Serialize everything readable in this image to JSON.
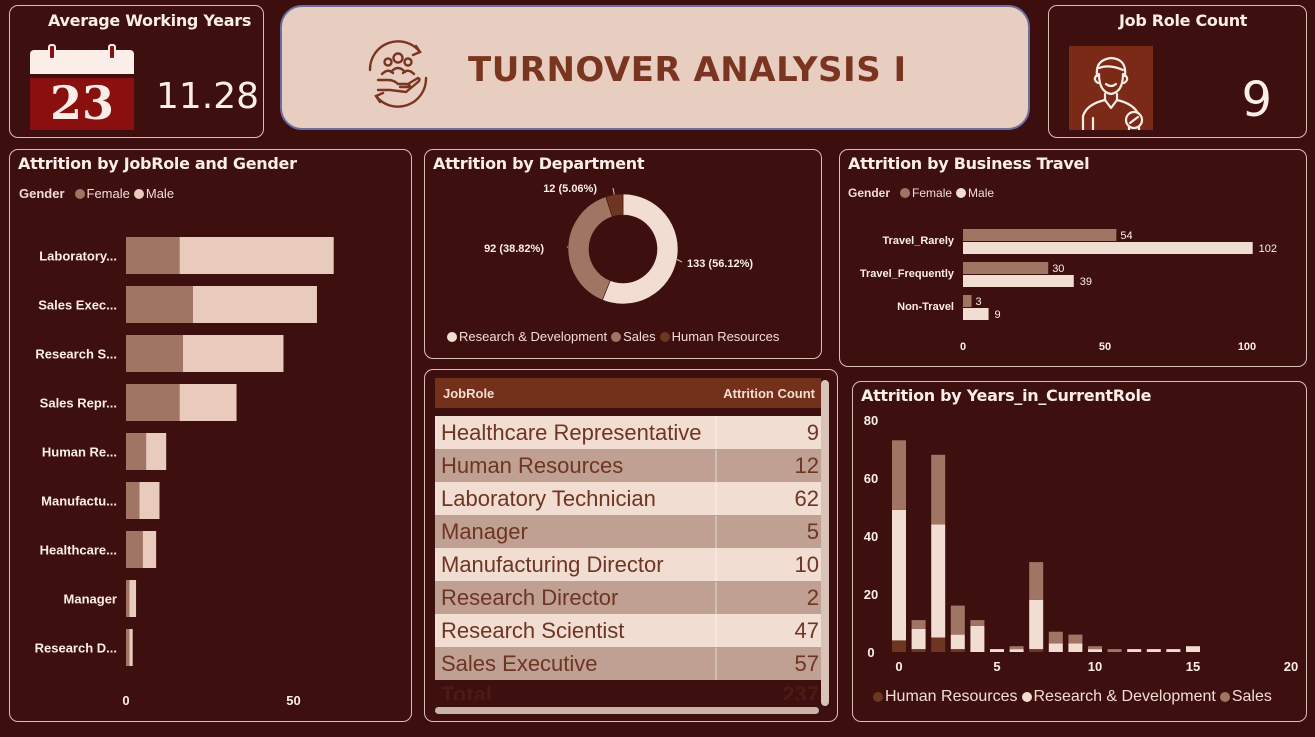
{
  "kpi_avg": {
    "title": "Average Working Years",
    "calendar_day": "23",
    "value": "11.28"
  },
  "header": {
    "title": "TURNOVER ANALYSIS I"
  },
  "kpi_roles": {
    "title": "Job Role Count",
    "value": "9"
  },
  "jobrole_gender": {
    "title": "Attrition by JobRole and Gender",
    "legend_title": "Gender",
    "legend": [
      "Female",
      "Male"
    ],
    "colors": {
      "female": "#a07564",
      "male": "#e9cbbd"
    }
  },
  "department": {
    "title": "Attrition by Department",
    "legend": [
      "Research & Development",
      "Sales",
      "Human Resources"
    ],
    "colors": [
      "#f1ddd2",
      "#a07564",
      "#6e3523"
    ],
    "labels": [
      "133 (56.12%)",
      "92 (38.82%)",
      "12 (5.06%)"
    ]
  },
  "travel": {
    "title": "Attrition by Business Travel",
    "legend_title": "Gender",
    "legend": [
      "Female",
      "Male"
    ],
    "colors": {
      "female": "#a07564",
      "male": "#f1ddd2"
    }
  },
  "table": {
    "col_role": "JobRole",
    "col_count": "Attrition Count",
    "rows": [
      {
        "role": "Healthcare Representative",
        "count": "9"
      },
      {
        "role": "Human Resources",
        "count": "12"
      },
      {
        "role": "Laboratory Technician",
        "count": "62"
      },
      {
        "role": "Manager",
        "count": "5"
      },
      {
        "role": "Manufacturing Director",
        "count": "10"
      },
      {
        "role": "Research Director",
        "count": "2"
      },
      {
        "role": "Research Scientist",
        "count": "47"
      },
      {
        "role": "Sales Executive",
        "count": "57"
      }
    ],
    "total_label": "Total",
    "total_value": "237"
  },
  "years_role": {
    "title": "Attrition by Years_in_CurrentRole",
    "legend": [
      "Human Resources",
      "Research & Development",
      "Sales"
    ],
    "colors": [
      "#6e3523",
      "#f1ddd2",
      "#a07564"
    ]
  },
  "chart_data": [
    {
      "type": "bar",
      "orientation": "horizontal",
      "stacked": true,
      "title": "Attrition by JobRole and Gender",
      "categories": [
        "Laboratory...",
        "Sales Exec...",
        "Research S...",
        "Sales Repr...",
        "Human Re...",
        "Manufactu...",
        "Healthcare...",
        "Manager",
        "Research D..."
      ],
      "series": [
        {
          "name": "Female",
          "values": [
            16,
            20,
            17,
            16,
            6,
            4,
            5,
            1,
            1
          ]
        },
        {
          "name": "Male",
          "values": [
            46,
            37,
            30,
            17,
            6,
            6,
            4,
            2,
            1
          ]
        }
      ],
      "xticks": [
        0,
        50
      ],
      "xlim": [
        0,
        70
      ],
      "legend_position": "top-left"
    },
    {
      "type": "pie",
      "donut": true,
      "title": "Attrition by Department",
      "categories": [
        "Research & Development",
        "Sales",
        "Human Resources"
      ],
      "values": [
        133,
        92,
        12
      ],
      "legend_position": "bottom"
    },
    {
      "type": "bar",
      "orientation": "horizontal",
      "title": "Attrition by Business Travel",
      "categories": [
        "Travel_Rarely",
        "Travel_Frequently",
        "Non-Travel"
      ],
      "series": [
        {
          "name": "Female",
          "values": [
            54,
            30,
            3
          ]
        },
        {
          "name": "Male",
          "values": [
            102,
            39,
            9
          ]
        }
      ],
      "xticks": [
        0,
        50,
        100
      ],
      "xlim": [
        0,
        110
      ],
      "legend_position": "top-left"
    },
    {
      "type": "bar",
      "stacked": true,
      "title": "Attrition by Years_in_CurrentRole",
      "x": [
        0,
        1,
        2,
        3,
        4,
        5,
        6,
        7,
        8,
        9,
        10,
        11,
        12,
        13,
        14,
        15
      ],
      "series": [
        {
          "name": "Human Resources",
          "values": [
            4,
            1,
            5,
            1,
            0,
            0,
            0,
            1,
            0,
            0,
            0,
            0,
            0,
            0,
            0,
            0
          ]
        },
        {
          "name": "Research & Development",
          "values": [
            45,
            7,
            39,
            5,
            9,
            1,
            1,
            17,
            3,
            3,
            1,
            0,
            1,
            1,
            1,
            2
          ]
        },
        {
          "name": "Sales",
          "values": [
            24,
            3,
            24,
            10,
            2,
            0,
            1,
            13,
            4,
            3,
            1,
            1,
            0,
            0,
            0,
            0
          ]
        }
      ],
      "yticks": [
        0,
        20,
        40,
        60,
        80
      ],
      "xticks": [
        0,
        5,
        10,
        15,
        20
      ],
      "ylim": [
        0,
        80
      ],
      "xlim": [
        -0.5,
        20
      ],
      "legend_position": "bottom"
    }
  ]
}
